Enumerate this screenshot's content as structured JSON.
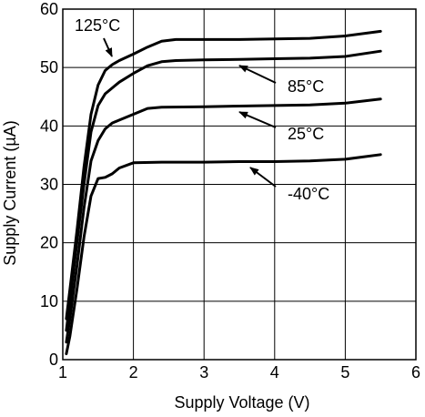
{
  "chart_data": {
    "type": "line",
    "xlabel": "Supply Voltage (V)",
    "ylabel": "Supply Current (µA)",
    "xlim": [
      1,
      6
    ],
    "ylim": [
      0,
      60
    ],
    "x_ticks": [
      "1",
      "2",
      "3",
      "4",
      "5",
      "6"
    ],
    "y_ticks": [
      "0",
      "10",
      "20",
      "30",
      "40",
      "50",
      "60"
    ],
    "grid": true,
    "legend": "none",
    "line_color": "#000000",
    "series": [
      {
        "name": "125°C",
        "points": [
          [
            1.05,
            7
          ],
          [
            1.1,
            12
          ],
          [
            1.2,
            22
          ],
          [
            1.3,
            33
          ],
          [
            1.4,
            42
          ],
          [
            1.5,
            47
          ],
          [
            1.6,
            49.5
          ],
          [
            1.7,
            50.5
          ],
          [
            1.8,
            51.2
          ],
          [
            2.0,
            52.3
          ],
          [
            2.2,
            53.5
          ],
          [
            2.4,
            54.5
          ],
          [
            2.6,
            54.8
          ],
          [
            3.0,
            54.8
          ],
          [
            3.5,
            54.8
          ],
          [
            4.0,
            54.9
          ],
          [
            4.5,
            55.0
          ],
          [
            5.0,
            55.4
          ],
          [
            5.5,
            56.2
          ]
        ]
      },
      {
        "name": "85°C",
        "points": [
          [
            1.05,
            5
          ],
          [
            1.1,
            10
          ],
          [
            1.2,
            20
          ],
          [
            1.3,
            30
          ],
          [
            1.4,
            39
          ],
          [
            1.5,
            43.5
          ],
          [
            1.6,
            45.5
          ],
          [
            1.7,
            46.5
          ],
          [
            1.8,
            47.5
          ],
          [
            2.0,
            49.0
          ],
          [
            2.2,
            50.3
          ],
          [
            2.4,
            51.0
          ],
          [
            2.6,
            51.2
          ],
          [
            3.0,
            51.3
          ],
          [
            3.5,
            51.4
          ],
          [
            4.0,
            51.5
          ],
          [
            4.5,
            51.6
          ],
          [
            5.0,
            51.9
          ],
          [
            5.5,
            52.8
          ]
        ]
      },
      {
        "name": "25°C",
        "points": [
          [
            1.05,
            3
          ],
          [
            1.1,
            7
          ],
          [
            1.2,
            16
          ],
          [
            1.3,
            26
          ],
          [
            1.4,
            34
          ],
          [
            1.5,
            37.5
          ],
          [
            1.6,
            39.5
          ],
          [
            1.7,
            40.5
          ],
          [
            1.8,
            41
          ],
          [
            2.0,
            42.0
          ],
          [
            2.2,
            43.0
          ],
          [
            2.4,
            43.2
          ],
          [
            3.0,
            43.3
          ],
          [
            3.5,
            43.4
          ],
          [
            4.0,
            43.5
          ],
          [
            4.5,
            43.6
          ],
          [
            5.0,
            43.9
          ],
          [
            5.5,
            44.6
          ]
        ]
      },
      {
        "name": "-40°C",
        "points": [
          [
            1.05,
            1
          ],
          [
            1.1,
            4
          ],
          [
            1.2,
            12
          ],
          [
            1.3,
            21
          ],
          [
            1.4,
            28
          ],
          [
            1.5,
            31
          ],
          [
            1.6,
            31.2
          ],
          [
            1.7,
            31.8
          ],
          [
            1.8,
            32.8
          ],
          [
            2.0,
            33.7
          ],
          [
            2.4,
            33.8
          ],
          [
            3.0,
            33.8
          ],
          [
            3.5,
            33.9
          ],
          [
            4.0,
            33.9
          ],
          [
            4.5,
            34.0
          ],
          [
            5.0,
            34.3
          ],
          [
            5.5,
            35.1
          ]
        ]
      }
    ],
    "annotations": [
      {
        "text": "125°C",
        "series": 0
      },
      {
        "text": "85°C",
        "series": 1
      },
      {
        "text": "25°C",
        "series": 2
      },
      {
        "text": "-40°C",
        "series": 3
      }
    ]
  }
}
